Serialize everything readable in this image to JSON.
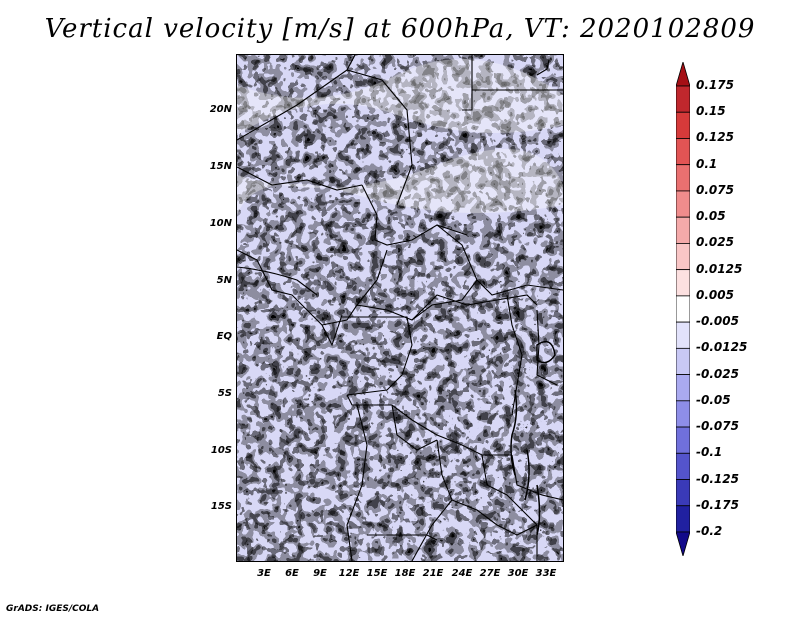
{
  "title": "Vertical velocity [m/s] at 600hPa, VT: 2020102809",
  "credit": "GrADS: IGES/COLA",
  "map": {
    "lat_labels": [
      "20N",
      "15N",
      "10N",
      "5N",
      "EQ",
      "5S",
      "10S",
      "15S"
    ],
    "lon_labels": [
      "3E",
      "6E",
      "9E",
      "12E",
      "15E",
      "18E",
      "21E",
      "24E",
      "27E",
      "30E",
      "33E"
    ]
  },
  "colorbar": {
    "levels": [
      "0.175",
      "0.15",
      "0.125",
      "0.1",
      "0.075",
      "0.05",
      "0.025",
      "0.0125",
      "0.005",
      "-0.005",
      "-0.0125",
      "-0.025",
      "-0.05",
      "-0.075",
      "-0.1",
      "-0.125",
      "-0.175",
      "-0.2"
    ],
    "colors": [
      "#a50f15",
      "#c0272d",
      "#d63a3a",
      "#e25454",
      "#ea7070",
      "#f08c8c",
      "#f5aaaa",
      "#f9c6c6",
      "#fce0e0",
      "#ffffff",
      "#e2e2fb",
      "#c8c8f5",
      "#aaaaf0",
      "#8e8ee8",
      "#7070dc",
      "#5454cc",
      "#3a3ab8",
      "#2020a0",
      "#120a8a"
    ]
  }
}
